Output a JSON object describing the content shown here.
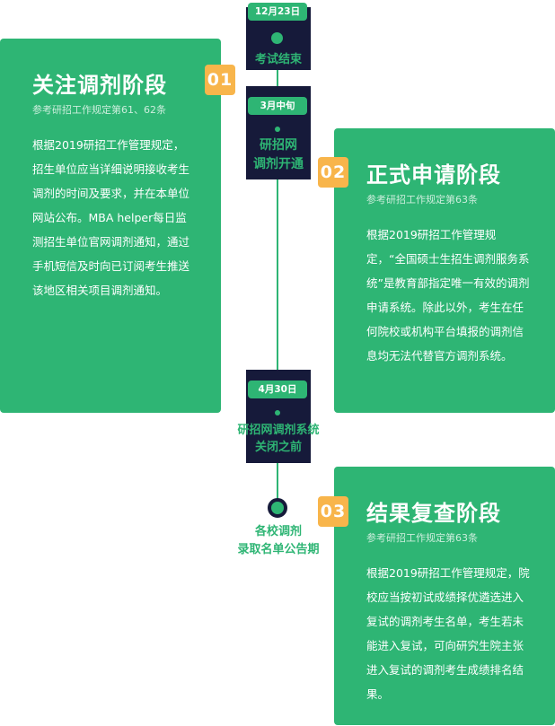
{
  "timeline": {
    "milestones": [
      {
        "date": "12月23日",
        "label": "考试结束"
      },
      {
        "date": "3月中旬",
        "label_line1": "研招网",
        "label_line2": "调剂开通"
      },
      {
        "date": "4月30日",
        "label_line1": "研招网调剂系统",
        "label_line2": "关闭之前"
      },
      {
        "label_line1": "各校调剂",
        "label_line2": "录取名单公告期"
      }
    ]
  },
  "cards": [
    {
      "number": "01",
      "title": "关注调剂阶段",
      "ref": "参考研招工作规定第61、62条",
      "body": "根据2019研招工作管理规定，招生单位应当详细说明接收考生调剂的时间及要求，并在本单位网站公布。MBA helper每日监测招生单位官网调剂通知，通过手机短信及时向已订阅考生推送该地区相关项目调剂通知。"
    },
    {
      "number": "02",
      "title": "正式申请阶段",
      "ref": "参考研招工作规定第63条",
      "body": "根据2019研招工作管理规定，“全国硕士生招生调剂服务系统”是教育部指定唯一有效的调剂申请系统。除此以外，考生在任何院校或机构平台填报的调剂信息均无法代替官方调剂系统。"
    },
    {
      "number": "03",
      "title": "结果复查阶段",
      "ref": "参考研招工作规定第63条",
      "body": "根据2019研招工作管理规定，院校应当按初试成绩择优遴选进入复试的调剂考生名单，考生若未能进入复试，可向研究生院主张进入复试的调剂考生成绩排名结果。"
    }
  ]
}
